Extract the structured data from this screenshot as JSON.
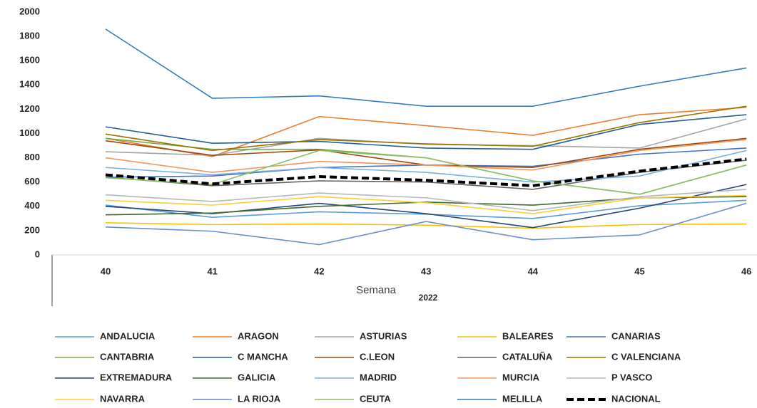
{
  "chart_data": {
    "type": "line",
    "x_label": "Semana",
    "subtitle": "2022",
    "categories": [
      "40",
      "41",
      "42",
      "43",
      "44",
      "45",
      "46"
    ],
    "ylim": [
      0,
      2000
    ],
    "yticks": [
      0,
      200,
      400,
      600,
      800,
      1000,
      1200,
      1400,
      1600,
      1800,
      2000
    ],
    "grid": false,
    "series": [
      {
        "name": "ANDALUCIA",
        "color": "#5b9bd5",
        "values": [
          410,
          310,
          355,
          335,
          300,
          405,
          450
        ]
      },
      {
        "name": "ARAGON",
        "color": "#ed7d31",
        "values": [
          960,
          810,
          1140,
          1065,
          985,
          1155,
          1215
        ]
      },
      {
        "name": "ASTURIAS",
        "color": "#a5a5a5",
        "values": [
          850,
          820,
          960,
          910,
          900,
          880,
          1120
        ]
      },
      {
        "name": "BALEARES",
        "color": "#ffc000",
        "values": [
          265,
          250,
          255,
          245,
          220,
          250,
          255
        ]
      },
      {
        "name": "CANARIAS",
        "color": "#4472c4",
        "values": [
          640,
          650,
          720,
          740,
          730,
          830,
          880
        ]
      },
      {
        "name": "CANTABRIA",
        "color": "#70ad47",
        "values": [
          960,
          870,
          870,
          800,
          610,
          500,
          740
        ]
      },
      {
        "name": "C MANCHA",
        "color": "#255e91",
        "values": [
          1055,
          920,
          935,
          880,
          870,
          1075,
          1155
        ]
      },
      {
        "name": "C.LEON",
        "color": "#9e480e",
        "values": [
          940,
          820,
          865,
          740,
          720,
          870,
          960
        ]
      },
      {
        "name": "CATALUÑA",
        "color": "#636363",
        "values": [
          640,
          570,
          610,
          600,
          540,
          680,
          780
        ]
      },
      {
        "name": "C VALENCIANA",
        "color": "#997300",
        "values": [
          995,
          860,
          950,
          915,
          895,
          1090,
          1225
        ]
      },
      {
        "name": "EXTREMADURA",
        "color": "#264478",
        "values": [
          400,
          340,
          425,
          340,
          225,
          385,
          580
        ]
      },
      {
        "name": "GALICIA",
        "color": "#43682b",
        "values": [
          330,
          345,
          400,
          435,
          410,
          470,
          480
        ]
      },
      {
        "name": "MADRID",
        "color": "#7cafdd",
        "values": [
          720,
          660,
          720,
          680,
          600,
          650,
          860
        ]
      },
      {
        "name": "MURCIA",
        "color": "#f1975a",
        "values": [
          800,
          680,
          770,
          740,
          700,
          860,
          950
        ]
      },
      {
        "name": "P VASCO",
        "color": "#b7b7b7",
        "values": [
          495,
          440,
          510,
          470,
          365,
          480,
          540
        ]
      },
      {
        "name": "NAVARRA",
        "color": "#ffcd33",
        "values": [
          450,
          410,
          480,
          430,
          340,
          470,
          490
        ]
      },
      {
        "name": "LA RIOJA",
        "color": "#698ed0",
        "values": [
          230,
          195,
          85,
          275,
          125,
          165,
          425
        ]
      },
      {
        "name": "CEUTA",
        "color": "#8cc168",
        "values": [
          635,
          580,
          860,
          800,
          610,
          500,
          740
        ]
      },
      {
        "name": "MELILLA",
        "color": "#327dc2",
        "values": [
          1860,
          1290,
          1310,
          1225,
          1225,
          1390,
          1540
        ]
      },
      {
        "name": "NACIONAL",
        "color": "#000000",
        "dashed": true,
        "values": [
          660,
          585,
          645,
          615,
          570,
          690,
          790
        ]
      }
    ]
  }
}
